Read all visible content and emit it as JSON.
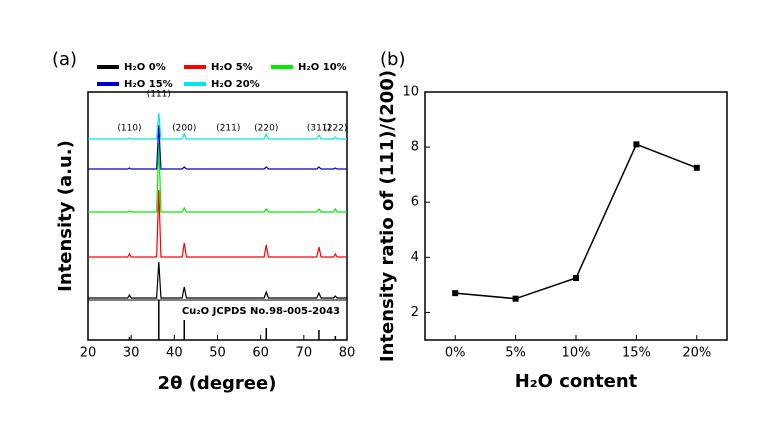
{
  "chart_data": [
    {
      "type": "xrd",
      "panel_label": "(a)",
      "x_label": "2θ (degree)",
      "y_label": "Intensity (a.u.)",
      "x": [
        20,
        29.2,
        29.6,
        30.0,
        35.9,
        36.4,
        36.9,
        41.8,
        42.3,
        42.8,
        60.8,
        61.3,
        61.8,
        73.0,
        73.5,
        74.0,
        76.9,
        77.3,
        77.7,
        80
      ],
      "series": [
        {
          "name": "H₂O 0%",
          "color": "#000000",
          "values": [
            0,
            0,
            3,
            0,
            0,
            36,
            0,
            0,
            11,
            0,
            0,
            6,
            0,
            0,
            5,
            0,
            0,
            2,
            0,
            0
          ]
        },
        {
          "name": "H₂O 5%",
          "color": "#ff0000",
          "values": [
            0,
            0,
            3,
            0,
            0,
            67,
            0,
            0,
            14,
            0,
            0,
            12,
            0,
            0,
            10,
            0,
            0,
            3,
            0,
            0
          ]
        },
        {
          "name": "H₂O 10%",
          "color": "#00ee00",
          "values": [
            0,
            0,
            1,
            0,
            0,
            69,
            0,
            0,
            4,
            0,
            0,
            3,
            0,
            0,
            3,
            0,
            0,
            3,
            0,
            0
          ]
        },
        {
          "name": "H₂O 15%",
          "color": "#0000cc",
          "values": [
            0,
            0,
            1,
            0,
            0,
            44,
            0,
            0,
            2,
            0,
            0,
            2,
            0,
            0,
            2,
            0,
            0,
            1,
            0,
            0
          ]
        },
        {
          "name": "H₂O 20%",
          "color": "#00e5ee",
          "values": [
            0,
            0,
            1,
            0,
            0,
            26,
            0,
            0,
            5,
            0,
            0,
            5,
            0,
            0,
            4,
            0,
            0,
            2,
            0,
            0
          ]
        }
      ],
      "reference": {
        "label": "Cu₂O JCPDS No.98-005-2043",
        "x": [
          29.6,
          36.4,
          42.3,
          61.3,
          73.5,
          77.3
        ],
        "values": [
          3,
          40,
          20,
          12,
          10,
          4
        ]
      },
      "annotations": [
        {
          "text": "(110)",
          "x": 29.6
        },
        {
          "text": "(111)",
          "x": 36.4
        },
        {
          "text": "(200)",
          "x": 42.3
        },
        {
          "text": "(211)",
          "x": 52.5
        },
        {
          "text": "(220)",
          "x": 61.3
        },
        {
          "text": "(311)",
          "x": 73.5
        },
        {
          "text": "(222)",
          "x": 77.3
        }
      ],
      "xlim": [
        20,
        80
      ],
      "xticks": [
        20,
        30,
        40,
        50,
        60,
        70,
        80
      ],
      "ylim": [
        0,
        248
      ]
    },
    {
      "type": "line",
      "panel_label": "(b)",
      "x_label": "H₂O content",
      "y_label": "Intensity ratio of (111)/(200)",
      "categories": [
        "0%",
        "5%",
        "10%",
        "15%",
        "20%"
      ],
      "values": [
        2.7,
        2.5,
        3.25,
        8.1,
        7.25
      ],
      "color": "#000000",
      "ylim": [
        1,
        10
      ],
      "yticks": [
        2,
        4,
        6,
        8,
        10
      ]
    }
  ]
}
